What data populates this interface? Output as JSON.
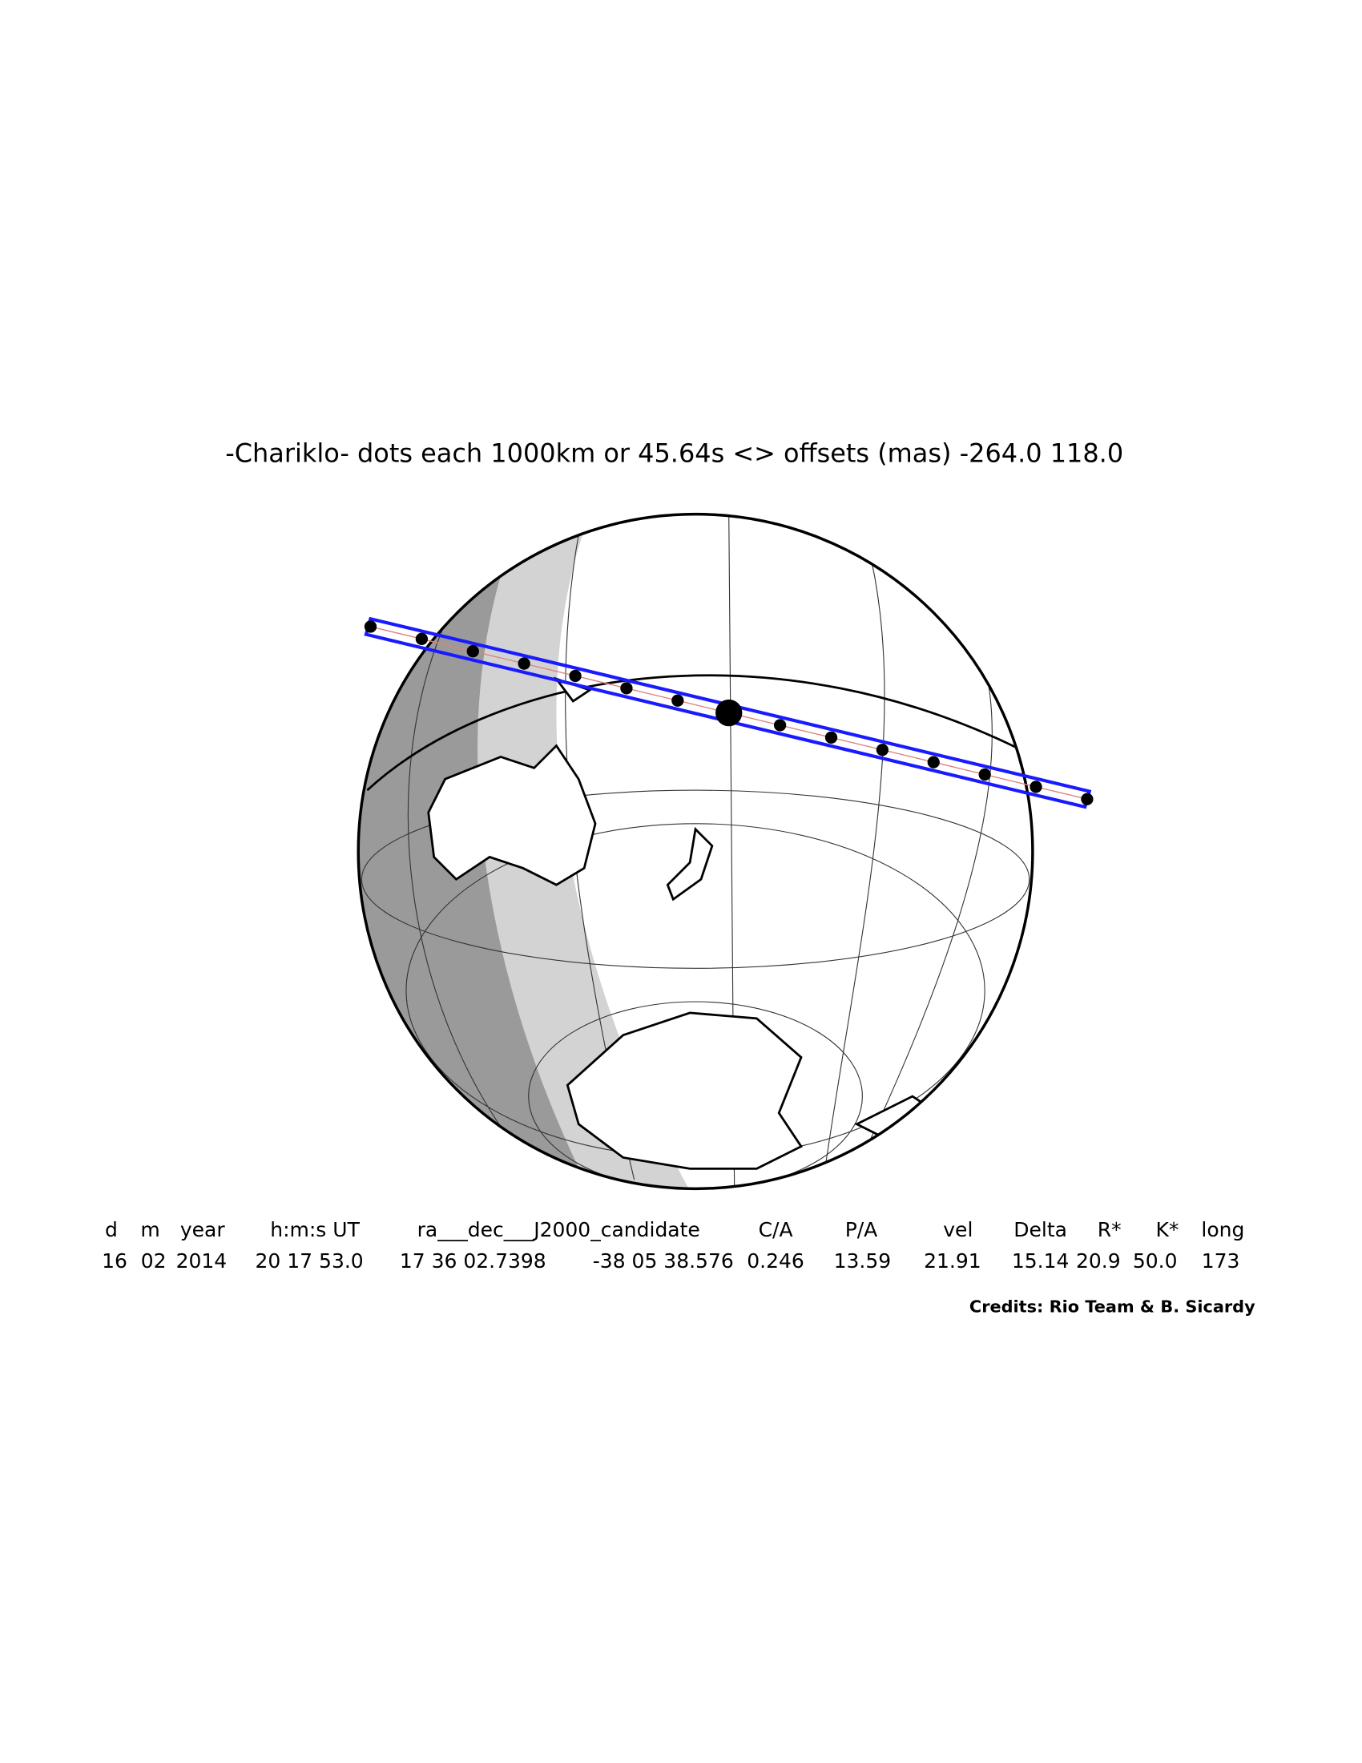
{
  "title": "-Chariklo- dots each 1000km or 45.64s <> offsets (mas) -264.0  118.0",
  "table": {
    "headers": [
      "d",
      "m",
      "year",
      "h:m:s UT",
      "ra___dec___J2000_candidate",
      "C/A",
      "P/A",
      "vel",
      "Delta",
      "R*",
      "K*",
      "long"
    ],
    "values": [
      "16",
      "02",
      "2014",
      "20 17 53.0",
      "17 36 02.7398",
      "-38 05 38.576",
      "0.246",
      "13.59",
      "21.91",
      "15.14",
      "20.9",
      "50.0",
      "173"
    ]
  },
  "credits": "Credits: Rio Team & B. Sicardy"
}
